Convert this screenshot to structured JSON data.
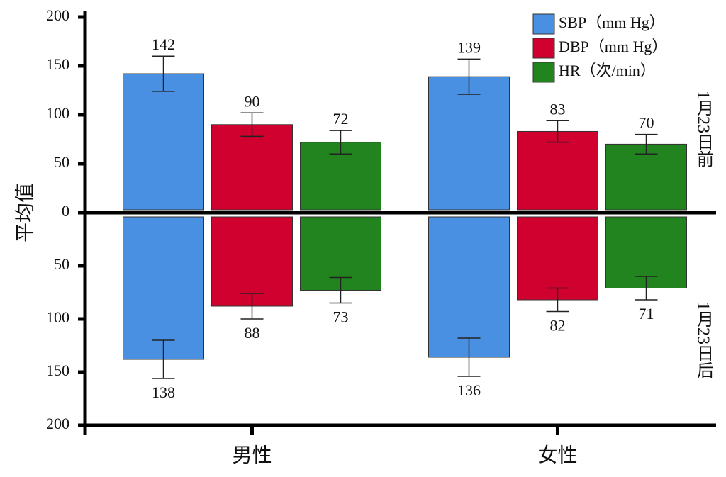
{
  "chart_data": [
    {
      "type": "bar",
      "ylabel": "平均值",
      "panel_label": "1月23日前",
      "ylim": [
        0,
        200
      ],
      "yticks": [
        0,
        50,
        100,
        150,
        200
      ],
      "legend": "upper right",
      "series": [
        {
          "name": "SBP（mm Hg）",
          "color": "#4a90e2",
          "values": [
            142,
            139
          ],
          "errors": [
            18,
            18
          ]
        },
        {
          "name": "DBP（mm Hg）",
          "color": "#d0002f",
          "values": [
            90,
            83
          ],
          "errors": [
            12,
            11
          ]
        },
        {
          "name": "HR（次/min）",
          "color": "#22841f",
          "values": [
            72,
            70
          ],
          "errors": [
            12,
            10
          ]
        }
      ]
    },
    {
      "type": "bar",
      "panel_label": "1月23日后",
      "categories": [
        "男性",
        "女性"
      ],
      "ylim": [
        0,
        200
      ],
      "yticks": [
        50,
        100,
        150,
        200
      ],
      "inverted": true,
      "series": [
        {
          "color": "#4a90e2",
          "values": [
            138,
            136
          ],
          "errors": [
            18,
            18
          ]
        },
        {
          "color": "#d0002f",
          "values": [
            88,
            82
          ],
          "errors": [
            12,
            11
          ]
        },
        {
          "color": "#22841f",
          "values": [
            73,
            71
          ],
          "errors": [
            12,
            11
          ]
        }
      ]
    }
  ]
}
